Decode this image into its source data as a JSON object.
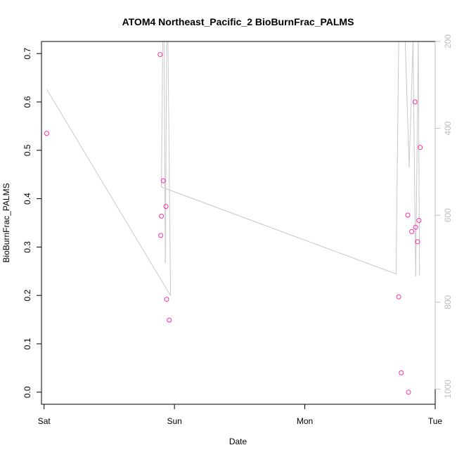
{
  "chart_data": {
    "type": "scatter",
    "title": "ATOM4 Northeast_Pacific_2 BioBurnFrac_PALMS",
    "xlabel": "Date",
    "ylabel": "BioBurnFrac_PALMS",
    "x_ticks": [
      {
        "label": "Sat",
        "value": 0
      },
      {
        "label": "Sun",
        "value": 1
      },
      {
        "label": "Mon",
        "value": 2
      },
      {
        "label": "Tue",
        "value": 3
      }
    ],
    "xlim": [
      -0.02,
      3.0
    ],
    "ylim": [
      -0.025,
      0.725
    ],
    "y_ticks": [
      0.0,
      0.1,
      0.2,
      0.3,
      0.4,
      0.5,
      0.6,
      0.7
    ],
    "y2_ticks": [
      200,
      400,
      600,
      800,
      1000
    ],
    "y2lim": [
      1035,
      200
    ],
    "grid": false,
    "colors": {
      "points": "#ff2aa8",
      "line": "#c8c8c8",
      "axis": "#000000",
      "right_axis": "#bdbdbd"
    },
    "series": [
      {
        "marker": "circle",
        "x": [
          0.02,
          0.89,
          0.895,
          0.9,
          0.915,
          0.935,
          0.94,
          0.96,
          2.72,
          2.74,
          2.79,
          2.795,
          2.82,
          2.845,
          2.85,
          2.865,
          2.875,
          2.885
        ],
        "y": [
          0.535,
          0.698,
          0.324,
          0.364,
          0.437,
          0.384,
          0.192,
          0.149,
          0.197,
          0.04,
          0.366,
          0.0,
          0.332,
          0.6,
          0.341,
          0.311,
          0.355,
          0.506
        ]
      },
      {
        "marker": "line",
        "x": [
          0.02,
          0.97,
          0.95,
          0.94,
          0.93,
          0.92,
          0.91,
          0.9,
          2.7,
          2.72,
          2.77,
          2.8,
          2.83,
          2.85,
          2.87,
          2.88
        ],
        "y": [
          310,
          785,
          200,
          200,
          710,
          200,
          200,
          535,
          735,
          200,
          200,
          490,
          200,
          740,
          200,
          740
        ]
      }
    ]
  }
}
